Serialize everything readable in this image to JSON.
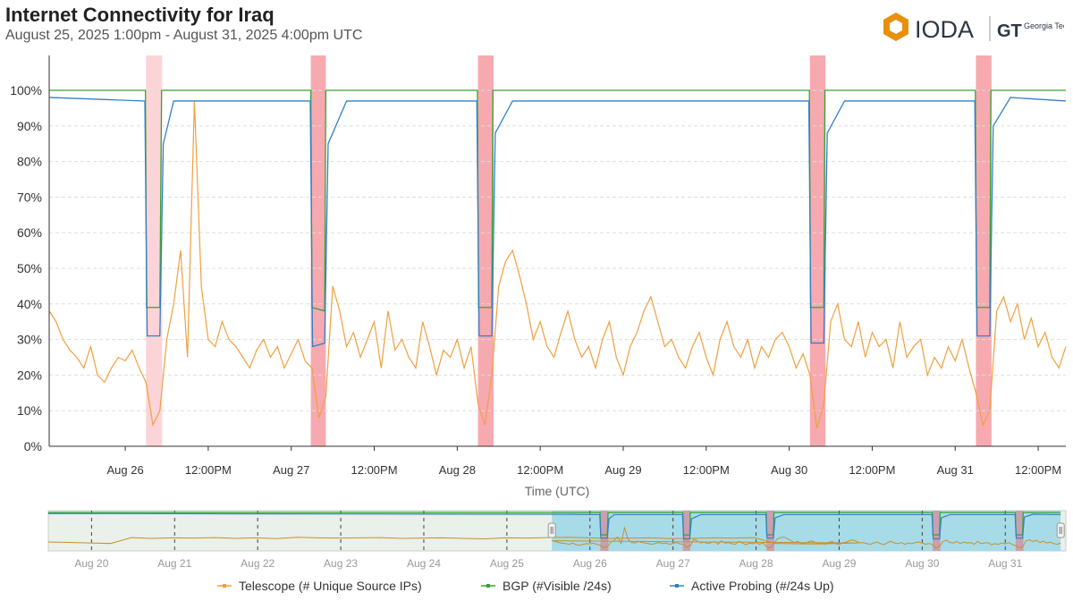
{
  "header": {
    "title": "Internet Connectivity for Iraq",
    "subtitle": "August 25, 2025 1:00pm - August 31, 2025 4:00pm UTC",
    "logo_text": "IODA",
    "partner_logo_text": "Georgia Tech"
  },
  "colors": {
    "telescope": "#f0a040",
    "bgp": "#33a532",
    "active": "#3381c5",
    "outage": "#f7a9b0",
    "outage_light": "#fcd4d8",
    "nav_selected": "#a8dbe8",
    "nav_unselected": "#eaf0ea"
  },
  "chart_data": {
    "type": "line",
    "xlabel": "Time (UTC)",
    "ylabel": "",
    "ylim": [
      0,
      100
    ],
    "yticks": [
      "0%",
      "10%",
      "20%",
      "30%",
      "40%",
      "50%",
      "60%",
      "70%",
      "80%",
      "90%",
      "100%"
    ],
    "xlim": [
      "2025-08-25T13:00",
      "2025-08-31T16:00"
    ],
    "xticks": [
      {
        "t": "2025-08-26T00:00",
        "label": "Aug 26"
      },
      {
        "t": "2025-08-26T12:00",
        "label": "12:00PM"
      },
      {
        "t": "2025-08-27T00:00",
        "label": "Aug 27"
      },
      {
        "t": "2025-08-27T12:00",
        "label": "12:00PM"
      },
      {
        "t": "2025-08-28T00:00",
        "label": "Aug 28"
      },
      {
        "t": "2025-08-28T12:00",
        "label": "12:00PM"
      },
      {
        "t": "2025-08-29T00:00",
        "label": "Aug 29"
      },
      {
        "t": "2025-08-29T12:00",
        "label": "12:00PM"
      },
      {
        "t": "2025-08-30T00:00",
        "label": "Aug 30"
      },
      {
        "t": "2025-08-30T12:00",
        "label": "12:00PM"
      },
      {
        "t": "2025-08-31T00:00",
        "label": "Aug 31"
      },
      {
        "t": "2025-08-31T12:00",
        "label": "12:00PM"
      }
    ],
    "grid": true,
    "outages": [
      [
        "2025-08-26T03:00",
        "2025-08-26T05:20"
      ],
      [
        "2025-08-27T02:50",
        "2025-08-27T05:00"
      ],
      [
        "2025-08-28T03:00",
        "2025-08-28T05:15"
      ],
      [
        "2025-08-30T03:00",
        "2025-08-30T05:15"
      ],
      [
        "2025-08-31T03:00",
        "2025-08-31T05:15"
      ]
    ],
    "series": [
      {
        "name": "Telescope (# Unique Source IPs)",
        "start": "2025-08-25T13:00",
        "interval_hours": 1,
        "values": [
          38,
          35,
          30,
          27,
          25,
          22,
          28,
          20,
          18,
          22,
          25,
          24,
          27,
          22,
          18,
          6,
          10,
          30,
          40,
          55,
          25,
          97,
          45,
          30,
          28,
          35,
          30,
          28,
          25,
          22,
          27,
          30,
          25,
          28,
          22,
          26,
          30,
          24,
          22,
          8,
          14,
          45,
          38,
          28,
          32,
          25,
          30,
          35,
          22,
          38,
          27,
          30,
          25,
          22,
          35,
          28,
          20,
          27,
          25,
          30,
          22,
          28,
          12,
          6,
          20,
          45,
          52,
          55,
          48,
          40,
          30,
          35,
          28,
          25,
          32,
          38,
          30,
          25,
          28,
          22,
          30,
          35,
          25,
          20,
          28,
          32,
          38,
          42,
          35,
          28,
          30,
          25,
          22,
          28,
          32,
          25,
          20,
          30,
          35,
          28,
          25,
          30,
          22,
          28,
          25,
          30,
          32,
          28,
          22,
          26,
          20,
          5,
          12,
          35,
          40,
          30,
          28,
          35,
          25,
          32,
          28,
          30,
          22,
          35,
          25,
          28,
          30,
          20,
          25,
          22,
          28,
          24,
          30,
          22,
          15,
          6,
          10,
          38,
          42,
          35,
          40,
          30,
          36,
          28,
          32,
          25,
          22,
          28
        ]
      },
      {
        "name": "BGP (#Visible /24s)",
        "points": [
          [
            "2025-08-25T13:00",
            100
          ],
          [
            "2025-08-26T02:55",
            100
          ],
          [
            "2025-08-26T03:05",
            39
          ],
          [
            "2025-08-26T05:00",
            39
          ],
          [
            "2025-08-26T05:15",
            100
          ],
          [
            "2025-08-27T02:50",
            100
          ],
          [
            "2025-08-27T03:00",
            39
          ],
          [
            "2025-08-27T04:50",
            38
          ],
          [
            "2025-08-27T05:00",
            100
          ],
          [
            "2025-08-28T02:55",
            100
          ],
          [
            "2025-08-28T03:05",
            39
          ],
          [
            "2025-08-28T05:00",
            39
          ],
          [
            "2025-08-28T05:10",
            100
          ],
          [
            "2025-08-30T02:55",
            100
          ],
          [
            "2025-08-30T03:05",
            39
          ],
          [
            "2025-08-30T05:00",
            39
          ],
          [
            "2025-08-30T05:10",
            100
          ],
          [
            "2025-08-31T02:55",
            100
          ],
          [
            "2025-08-31T03:05",
            39
          ],
          [
            "2025-08-31T05:00",
            39
          ],
          [
            "2025-08-31T05:10",
            100
          ],
          [
            "2025-08-31T16:00",
            100
          ]
        ]
      },
      {
        "name": "Active Probing (#/24s Up)",
        "points": [
          [
            "2025-08-25T13:00",
            98
          ],
          [
            "2025-08-26T02:50",
            97
          ],
          [
            "2025-08-26T03:10",
            31
          ],
          [
            "2025-08-26T05:00",
            31
          ],
          [
            "2025-08-26T05:30",
            85
          ],
          [
            "2025-08-26T07:00",
            97
          ],
          [
            "2025-08-27T02:45",
            97
          ],
          [
            "2025-08-27T03:05",
            28
          ],
          [
            "2025-08-27T04:50",
            29
          ],
          [
            "2025-08-27T05:20",
            85
          ],
          [
            "2025-08-27T08:00",
            97
          ],
          [
            "2025-08-28T02:50",
            97
          ],
          [
            "2025-08-28T03:10",
            31
          ],
          [
            "2025-08-28T05:00",
            31
          ],
          [
            "2025-08-28T05:30",
            88
          ],
          [
            "2025-08-28T08:00",
            97
          ],
          [
            "2025-08-30T02:50",
            97
          ],
          [
            "2025-08-30T03:10",
            29
          ],
          [
            "2025-08-30T05:00",
            29
          ],
          [
            "2025-08-30T05:30",
            88
          ],
          [
            "2025-08-30T08:00",
            97
          ],
          [
            "2025-08-31T02:50",
            97
          ],
          [
            "2025-08-31T03:10",
            31
          ],
          [
            "2025-08-31T05:00",
            31
          ],
          [
            "2025-08-31T05:30",
            90
          ],
          [
            "2025-08-31T08:00",
            98
          ],
          [
            "2025-08-31T16:00",
            97
          ]
        ]
      }
    ]
  },
  "navigator": {
    "xlim": [
      "2025-08-19T11:30",
      "2025-08-31T17:30"
    ],
    "selection": [
      "2025-08-25T13:00",
      "2025-08-31T16:00"
    ],
    "xticks": [
      {
        "t": "2025-08-20T00:00",
        "label": "Aug 20"
      },
      {
        "t": "2025-08-21T00:00",
        "label": "Aug 21"
      },
      {
        "t": "2025-08-22T00:00",
        "label": "Aug 22"
      },
      {
        "t": "2025-08-23T00:00",
        "label": "Aug 23"
      },
      {
        "t": "2025-08-24T00:00",
        "label": "Aug 24"
      },
      {
        "t": "2025-08-25T00:00",
        "label": "Aug 25"
      },
      {
        "t": "2025-08-26T00:00",
        "label": "Aug 26"
      },
      {
        "t": "2025-08-27T00:00",
        "label": "Aug 27"
      },
      {
        "t": "2025-08-28T00:00",
        "label": "Aug 28"
      },
      {
        "t": "2025-08-29T00:00",
        "label": "Aug 29"
      },
      {
        "t": "2025-08-30T00:00",
        "label": "Aug 30"
      },
      {
        "t": "2025-08-31T00:00",
        "label": "Aug 31"
      }
    ],
    "telescope_history": {
      "start": "2025-08-19T11:30",
      "interval_hours": 6,
      "values": [
        28,
        26,
        24,
        22,
        45,
        42,
        44,
        43,
        45,
        42,
        44,
        41,
        46,
        44,
        43,
        44,
        45,
        42,
        43,
        44,
        42,
        40,
        44,
        43,
        45,
        46,
        44,
        42,
        43,
        44,
        41,
        42,
        44,
        43,
        45,
        22,
        21,
        20,
        22,
        24
      ]
    }
  },
  "legend": [
    {
      "label": "Telescope (# Unique Source IPs)",
      "key": "telescope"
    },
    {
      "label": "BGP (#Visible /24s)",
      "key": "bgp"
    },
    {
      "label": "Active Probing (#/24s Up)",
      "key": "active"
    }
  ]
}
